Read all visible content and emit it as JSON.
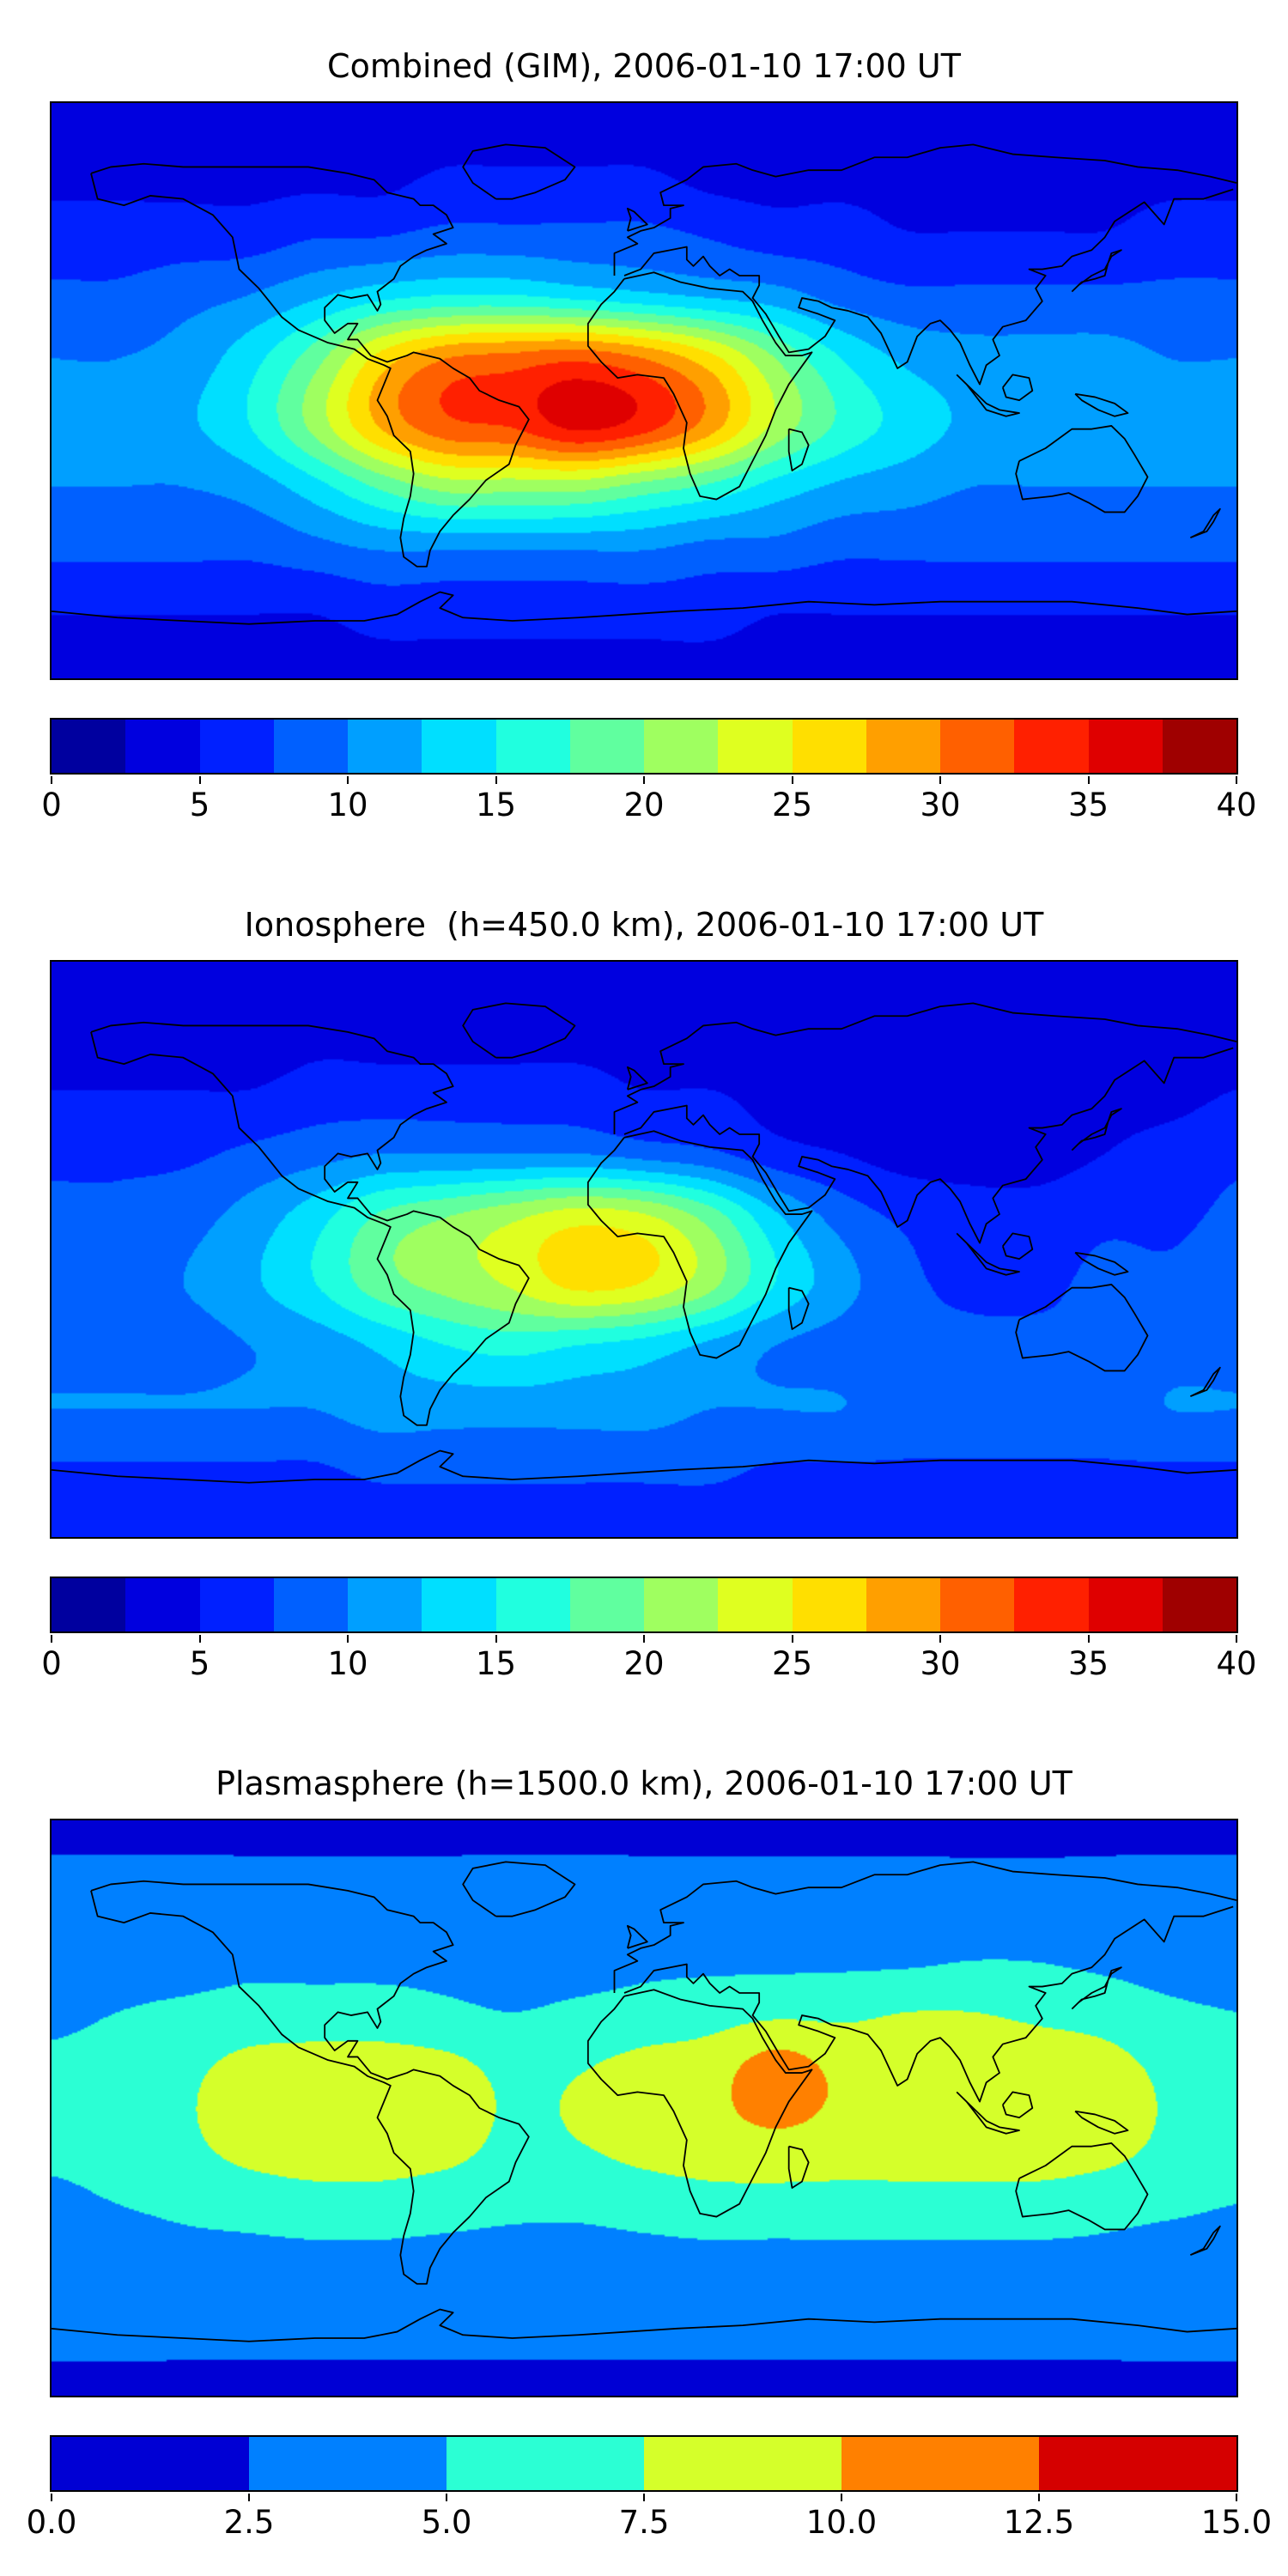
{
  "figure": {
    "background": "#ffffff",
    "coastline_color": "#000000"
  },
  "chart_data": [
    {
      "type": "heatmap",
      "title": "Combined (GIM), 2006-01-10 17:00 UT",
      "colormap": "jet",
      "levels": {
        "min": 0,
        "max": 40,
        "step": 2.5,
        "n_segments": 16
      },
      "colorbar_ticks": [
        "0",
        "5",
        "10",
        "15",
        "20",
        "25",
        "30",
        "35",
        "40"
      ],
      "x_lon": [
        -180,
        -160,
        -140,
        -120,
        -100,
        -80,
        -60,
        -40,
        -20,
        0,
        20,
        40,
        60,
        80,
        100,
        120,
        140,
        160,
        180
      ],
      "y_lat": [
        90,
        70,
        50,
        30,
        10,
        -10,
        -30,
        -50,
        -70,
        -90
      ],
      "values": [
        [
          3,
          3,
          3,
          3,
          3,
          3,
          3,
          3,
          3,
          3,
          3,
          3,
          3,
          3,
          3,
          3,
          3,
          3,
          3
        ],
        [
          4,
          4,
          4,
          4,
          4,
          4,
          5,
          5,
          5,
          5,
          4,
          4,
          4,
          4,
          4,
          4,
          4,
          4,
          4
        ],
        [
          6,
          6,
          6,
          6,
          7,
          7,
          8,
          8,
          8,
          8,
          7,
          6,
          6,
          5,
          5,
          5,
          5,
          6,
          6
        ],
        [
          8,
          8,
          9,
          10,
          12,
          14,
          15,
          15,
          14,
          13,
          12,
          11,
          9,
          8,
          8,
          8,
          8,
          8,
          8
        ],
        [
          10,
          10,
          11,
          14,
          19,
          26,
          30,
          31,
          32,
          30,
          26,
          20,
          15,
          12,
          11,
          11,
          11,
          10,
          10
        ],
        [
          11,
          11,
          12,
          15,
          21,
          28,
          32,
          33,
          36,
          34,
          29,
          22,
          17,
          14,
          12,
          12,
          12,
          11,
          11
        ],
        [
          10,
          10,
          10,
          11,
          14,
          18,
          21,
          21,
          21,
          19,
          17,
          14,
          12,
          11,
          10,
          10,
          10,
          10,
          10
        ],
        [
          8,
          8,
          8,
          8,
          9,
          10,
          10,
          10,
          10,
          10,
          9,
          9,
          8,
          8,
          8,
          8,
          8,
          8,
          8
        ],
        [
          5,
          5,
          5,
          5,
          5,
          6,
          6,
          6,
          6,
          6,
          6,
          5,
          5,
          5,
          5,
          5,
          5,
          5,
          5
        ],
        [
          4,
          4,
          4,
          4,
          4,
          4,
          4,
          4,
          4,
          4,
          4,
          4,
          4,
          4,
          4,
          4,
          4,
          4,
          4
        ]
      ]
    },
    {
      "type": "heatmap",
      "title": "Ionosphere  (h=450.0 km), 2006-01-10 17:00 UT",
      "colormap": "jet",
      "levels": {
        "min": 0,
        "max": 40,
        "step": 2.5,
        "n_segments": 16
      },
      "colorbar_ticks": [
        "0",
        "5",
        "10",
        "15",
        "20",
        "25",
        "30",
        "35",
        "40"
      ],
      "x_lon": [
        -180,
        -160,
        -140,
        -120,
        -100,
        -80,
        -60,
        -40,
        -20,
        0,
        20,
        40,
        60,
        80,
        100,
        120,
        140,
        160,
        180
      ],
      "y_lat": [
        90,
        70,
        50,
        30,
        10,
        -10,
        -30,
        -50,
        -70,
        -90
      ],
      "values": [
        [
          3,
          3,
          3,
          3,
          3,
          3,
          3,
          3,
          3,
          3,
          3,
          3,
          3,
          3,
          3,
          3,
          3,
          3,
          3
        ],
        [
          3,
          3,
          3,
          3,
          4,
          4,
          4,
          4,
          4,
          4,
          3,
          3,
          3,
          3,
          3,
          3,
          3,
          3,
          3
        ],
        [
          5,
          5,
          5,
          5,
          6,
          6,
          6,
          6,
          6,
          5,
          5,
          4,
          3,
          3,
          3,
          3,
          4,
          4,
          5
        ],
        [
          7,
          7,
          7,
          8,
          9,
          10,
          10,
          10,
          10,
          9,
          8,
          6,
          5,
          4,
          4,
          4,
          5,
          6,
          7
        ],
        [
          8,
          8,
          9,
          11,
          14,
          18,
          20,
          22,
          24,
          23,
          19,
          13,
          9,
          7,
          6,
          6,
          7,
          7,
          8
        ],
        [
          9,
          9,
          10,
          12,
          15,
          19,
          21,
          23,
          26,
          25,
          21,
          15,
          11,
          8,
          7,
          7,
          8,
          8,
          9
        ],
        [
          9,
          9,
          9,
          10,
          11,
          13,
          15,
          16,
          15,
          14,
          12,
          10,
          9,
          8,
          8,
          8,
          8,
          9,
          9
        ],
        [
          10,
          10,
          10,
          10,
          10,
          11,
          11,
          11,
          11,
          11,
          10,
          10,
          10,
          9,
          9,
          9,
          9,
          10,
          10
        ],
        [
          7,
          7,
          7,
          7,
          7,
          8,
          8,
          8,
          8,
          8,
          8,
          7,
          7,
          7,
          7,
          7,
          7,
          7,
          7
        ],
        [
          5,
          5,
          5,
          5,
          5,
          5,
          5,
          5,
          5,
          5,
          5,
          5,
          5,
          5,
          5,
          5,
          5,
          5,
          5
        ]
      ]
    },
    {
      "type": "heatmap",
      "title": "Plasmasphere (h=1500.0 km), 2006-01-10 17:00 UT",
      "colormap": "jet",
      "levels": {
        "min": 0,
        "max": 15,
        "step": 2.5,
        "n_segments": 6
      },
      "colorbar_ticks": [
        "0.0",
        "2.5",
        "5.0",
        "7.5",
        "10.0",
        "12.5",
        "15.0"
      ],
      "x_lon": [
        -180,
        -160,
        -140,
        -120,
        -100,
        -80,
        -60,
        -40,
        -20,
        0,
        20,
        40,
        60,
        80,
        100,
        120,
        140,
        160,
        180
      ],
      "y_lat": [
        90,
        70,
        50,
        30,
        10,
        -10,
        -30,
        -50,
        -70,
        -90
      ],
      "values": [
        [
          2,
          2,
          2,
          2,
          2,
          2,
          2,
          2,
          2,
          2,
          2,
          2,
          2,
          2,
          2,
          2,
          2,
          2,
          2
        ],
        [
          3,
          3,
          3,
          3,
          3,
          3,
          3,
          3,
          3,
          3,
          3,
          3,
          3,
          3,
          3,
          3,
          3,
          3,
          3
        ],
        [
          3.5,
          3.5,
          3.5,
          4,
          4,
          4,
          4,
          3.5,
          3.5,
          4,
          4,
          4,
          4,
          4,
          4.5,
          4.5,
          4,
          3.5,
          3.5
        ],
        [
          4.5,
          5,
          5.5,
          6,
          6,
          6,
          5.5,
          5,
          5.5,
          6,
          6.5,
          7,
          7,
          7.5,
          7.5,
          7,
          6.5,
          5.5,
          5
        ],
        [
          5.5,
          6,
          7,
          8.5,
          9,
          9,
          8.5,
          7,
          7.5,
          8.5,
          9,
          11.5,
          9.5,
          9,
          9,
          9,
          8.5,
          7,
          6
        ],
        [
          5.5,
          6,
          7,
          8.5,
          9,
          9,
          8.5,
          7,
          7.5,
          8.5,
          9,
          9.5,
          9,
          9,
          9,
          9,
          8.5,
          7,
          6
        ],
        [
          4.5,
          5,
          5.5,
          6,
          6.5,
          6.5,
          6,
          5.5,
          5.5,
          6,
          6.5,
          6.5,
          6.5,
          6.5,
          6.5,
          6.5,
          6,
          5.5,
          5
        ],
        [
          3.5,
          3.5,
          4,
          4,
          4,
          4,
          4,
          4,
          4,
          4,
          4,
          4,
          4,
          4,
          4,
          4,
          4,
          3.5,
          3.5
        ],
        [
          3,
          3,
          3,
          3,
          3,
          3,
          3,
          3,
          3,
          3,
          3,
          3,
          3,
          3,
          3,
          3,
          3,
          3,
          3
        ],
        [
          2,
          2,
          2,
          2,
          2,
          2,
          2,
          2,
          2,
          2,
          2,
          2,
          2,
          2,
          2,
          2,
          2,
          2,
          2
        ]
      ]
    }
  ]
}
